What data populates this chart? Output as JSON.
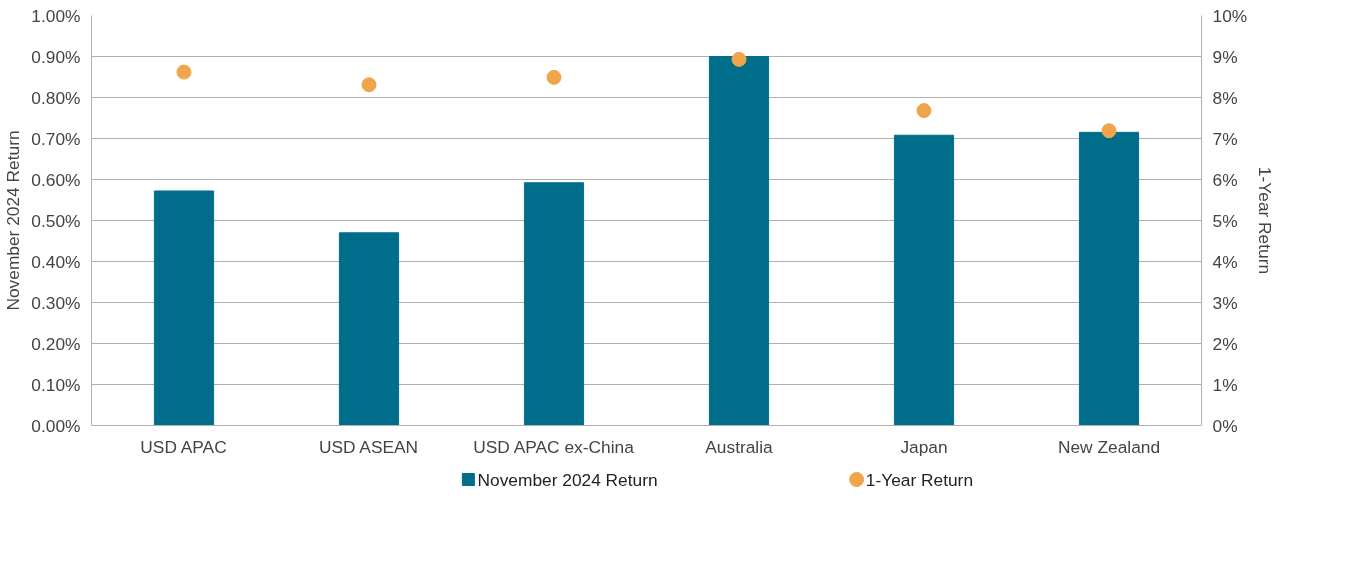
{
  "chart_data": {
    "type": "bar",
    "categories": [
      "USD APAC",
      "USD ASEAN",
      "USD APAC ex-China",
      "Australia",
      "Japan",
      "New Zealand"
    ],
    "series": [
      {
        "name": "November 2024 Return",
        "color": "#006e8a",
        "values": [
          0.572,
          0.47,
          0.592,
          0.9,
          0.708,
          0.715
        ]
      },
      {
        "name": "1-Year Return",
        "color": "#f0a54a",
        "type": "scatter",
        "axis": "y2",
        "values": [
          8.62,
          8.31,
          8.49,
          8.93,
          7.68,
          7.19
        ]
      }
    ],
    "ylabel": "November 2024 Return",
    "y2label": "1-Year Return",
    "ylim": [
      0,
      1
    ],
    "yticks": [
      {
        "value": 0,
        "label": "0.00%"
      },
      {
        "value": 0.1,
        "label": "0.10%"
      },
      {
        "value": 0.2,
        "label": "0.20%"
      },
      {
        "value": 0.3,
        "label": "0.30%"
      },
      {
        "value": 0.4,
        "label": "0.40%"
      },
      {
        "value": 0.5,
        "label": "0.50%"
      },
      {
        "value": 0.6,
        "label": "0.60%"
      },
      {
        "value": 0.7,
        "label": "0.70%"
      },
      {
        "value": 0.8,
        "label": "0.80%"
      },
      {
        "value": 0.9,
        "label": "0.90%"
      },
      {
        "value": 1,
        "label": "1.00%"
      }
    ],
    "y2lim": [
      0,
      10
    ],
    "y2ticks": [
      {
        "value": 0,
        "label": "0%"
      },
      {
        "value": 1,
        "label": "1%"
      },
      {
        "value": 2,
        "label": "2%"
      },
      {
        "value": 3,
        "label": "3%"
      },
      {
        "value": 4,
        "label": "4%"
      },
      {
        "value": 5,
        "label": "5%"
      },
      {
        "value": 6,
        "label": "6%"
      },
      {
        "value": 7,
        "label": "7%"
      },
      {
        "value": 8,
        "label": "8%"
      },
      {
        "value": 9,
        "label": "9%"
      },
      {
        "value": 10,
        "label": "10%"
      }
    ],
    "grid": "y",
    "legend": "bottom",
    "marker": "circle"
  }
}
